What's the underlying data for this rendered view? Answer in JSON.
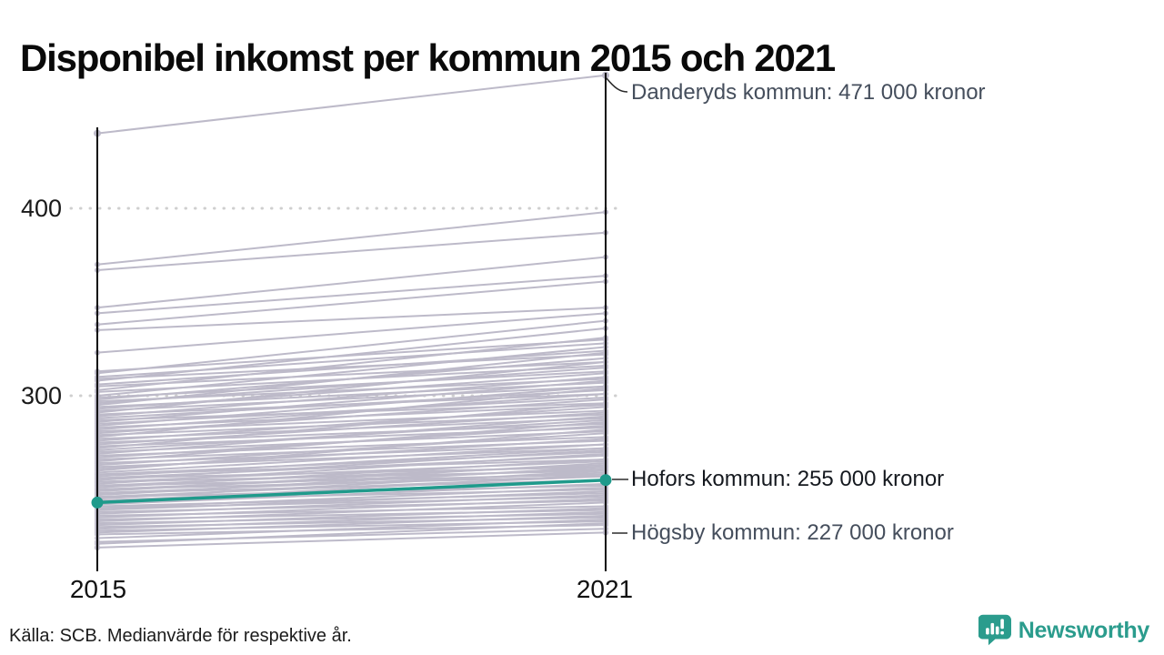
{
  "title": "Disponibel inkomst per kommun 2015 och 2021",
  "source": "Källa: SCB. Medianvärde för respektive år.",
  "logo": {
    "text": "Newsworthy"
  },
  "colors": {
    "gray_line": "#bdbac9",
    "highlight_teal": "#1f9a8b",
    "axis": "#0b0b0b",
    "gridline": "#cfcfcf",
    "connector": "#2b2b2b",
    "annotation_text": "#454e5c",
    "annotation_text_dark": "#15191f",
    "logo_teal": "#2b9c8d"
  },
  "chart_data": {
    "type": "line",
    "subtype": "slope",
    "title": "Disponibel inkomst per kommun 2015 och 2021",
    "x": [
      2015,
      2021
    ],
    "x_labels": [
      "2015",
      "2021"
    ],
    "ylabel": "",
    "xlabel": "",
    "unit_suffix": "000 kronor",
    "yticks": [
      300,
      400
    ],
    "ytick_labels": [
      "300",
      "400"
    ],
    "ylim": [
      210,
      480
    ],
    "grid": "dotted horizontal at yticks",
    "legend": "none",
    "annotations": [
      {
        "target": "danderyd",
        "label": "Danderyds kommun: 471 000 kronor",
        "value_2021": 471
      },
      {
        "target": "hofors",
        "label": "Hofors kommun: 255 000 kronor",
        "value_2021": 255
      },
      {
        "target": "hogsby",
        "label": "Högsby kommun: 227 000 kronor",
        "value_2021": 227
      }
    ],
    "series": {
      "danderyd": {
        "name": "Danderyds kommun",
        "values": [
          440,
          471
        ],
        "style": "gray"
      },
      "hofors": {
        "name": "Hofors kommun",
        "values": [
          243,
          255
        ],
        "style": "highlight"
      },
      "hogsby": {
        "name": "Högsby kommun",
        "values": [
          219,
          227
        ],
        "style": "gray"
      },
      "others": [
        [
          370,
          398
        ],
        [
          367,
          387
        ],
        [
          347,
          374
        ],
        [
          344,
          364
        ],
        [
          338,
          361
        ],
        [
          335,
          347
        ],
        [
          323,
          344
        ],
        [
          313,
          330
        ],
        [
          312,
          340
        ],
        [
          310,
          328
        ],
        [
          309,
          322
        ],
        [
          308,
          336
        ],
        [
          306,
          324
        ],
        [
          305,
          318
        ],
        [
          303,
          331
        ],
        [
          302,
          316
        ],
        [
          300,
          326
        ],
        [
          299,
          313
        ],
        [
          298,
          320
        ],
        [
          297,
          309
        ],
        [
          296,
          315
        ],
        [
          295,
          323
        ],
        [
          294,
          307
        ],
        [
          293,
          312
        ],
        [
          292,
          305
        ],
        [
          291,
          318
        ],
        [
          290,
          301
        ],
        [
          289,
          310
        ],
        [
          288,
          303
        ],
        [
          287,
          296
        ],
        [
          286,
          308
        ],
        [
          285,
          299
        ],
        [
          284,
          305
        ],
        [
          283,
          295
        ],
        [
          282,
          301
        ],
        [
          281,
          292
        ],
        [
          280,
          298
        ],
        [
          279,
          290
        ],
        [
          278,
          304
        ],
        [
          277,
          288
        ],
        [
          276,
          294
        ],
        [
          275,
          285
        ],
        [
          274,
          291
        ],
        [
          273,
          283
        ],
        [
          272,
          296
        ],
        [
          271,
          287
        ],
        [
          270,
          281
        ],
        [
          269,
          289
        ],
        [
          268,
          278
        ],
        [
          267,
          284
        ],
        [
          266,
          276
        ],
        [
          265,
          286
        ],
        [
          264,
          274
        ],
        [
          263,
          280
        ],
        [
          262,
          272
        ],
        [
          261,
          277
        ],
        [
          260,
          282
        ],
        [
          259,
          274
        ],
        [
          258,
          270
        ],
        [
          258,
          266
        ],
        [
          257,
          272
        ],
        [
          256,
          268
        ],
        [
          256,
          262
        ],
        [
          255,
          271
        ],
        [
          254,
          265
        ],
        [
          254,
          260
        ],
        [
          253,
          269
        ],
        [
          252,
          263
        ],
        [
          252,
          258
        ],
        [
          251,
          266
        ],
        [
          250,
          261
        ],
        [
          250,
          257
        ],
        [
          249,
          264
        ],
        [
          248,
          259
        ],
        [
          248,
          255
        ],
        [
          247,
          262
        ],
        [
          246,
          257
        ],
        [
          246,
          252
        ],
        [
          245,
          260
        ],
        [
          244,
          255
        ],
        [
          244,
          250
        ],
        [
          243,
          258
        ],
        [
          242,
          253
        ],
        [
          241,
          248
        ],
        [
          240,
          251
        ],
        [
          240,
          246
        ],
        [
          239,
          249
        ],
        [
          238,
          244
        ],
        [
          237,
          247
        ],
        [
          236,
          241
        ],
        [
          235,
          245
        ],
        [
          234,
          239
        ],
        [
          233,
          243
        ],
        [
          232,
          237
        ],
        [
          231,
          240
        ],
        [
          230,
          235
        ],
        [
          229,
          238
        ],
        [
          228,
          233
        ],
        [
          227,
          236
        ],
        [
          226,
          231
        ],
        [
          224,
          234
        ],
        [
          222,
          229
        ],
        [
          221,
          232
        ]
      ]
    }
  }
}
